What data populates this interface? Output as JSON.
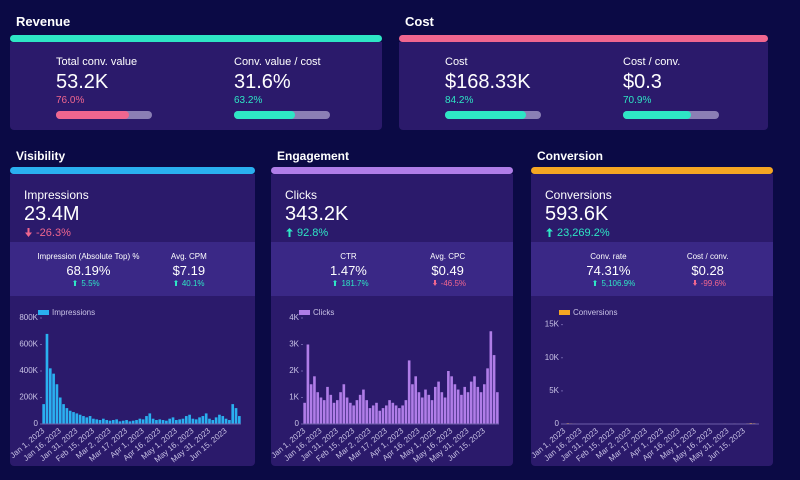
{
  "sections": [
    {
      "title": "Revenue",
      "color": "#2ee6c5",
      "kpis": [
        {
          "label": "Total conv. value",
          "value": "53.2K",
          "progress": {
            "value": 76.0,
            "label": "76.0%"
          },
          "color": "#f0668f"
        },
        {
          "label": "Conv. value / cost",
          "value": "31.6%",
          "progress": {
            "value": 63.2,
            "label": "63.2%"
          },
          "color": "#2ee6c5"
        }
      ]
    },
    {
      "title": "Cost",
      "color": "#f0668f",
      "kpis": [
        {
          "label": "Cost",
          "value": "$168.33K",
          "progress": {
            "value": 84.2,
            "label": "84.2%"
          },
          "color": "#2ee6c5"
        },
        {
          "label": "Cost / conv.",
          "value": "$0.3",
          "progress": {
            "value": 70.9,
            "label": "70.9%"
          },
          "color": "#2ee6c5"
        }
      ]
    }
  ],
  "panels": [
    {
      "title": "Visibility",
      "color": "#2ab0f0",
      "main": {
        "label": "Impressions",
        "value": "23.4M",
        "change": "-26.3%",
        "trend": "down"
      },
      "subs": [
        {
          "label": "Impression (Absolute Top) %",
          "value": "68.19%",
          "change": "5.5%",
          "trend": "up"
        },
        {
          "label": "Avg. CPM",
          "value": "$7.19",
          "change": "40.1%",
          "trend": "up"
        }
      ]
    },
    {
      "title": "Engagement",
      "color": "#b07de8",
      "main": {
        "label": "Clicks",
        "value": "343.2K",
        "change": "92.8%",
        "trend": "up"
      },
      "subs": [
        {
          "label": "CTR",
          "value": "1.47%",
          "change": "181.7%",
          "trend": "up"
        },
        {
          "label": "Avg. CPC",
          "value": "$0.49",
          "change": "-46.5%",
          "trend": "down"
        }
      ]
    },
    {
      "title": "Conversion",
      "color": "#f5a623",
      "main": {
        "label": "Conversions",
        "value": "593.6K",
        "change": "23,269.2%",
        "trend": "up"
      },
      "subs": [
        {
          "label": "Conv. rate",
          "value": "74.31%",
          "change": "5,106.9%",
          "trend": "up"
        },
        {
          "label": "Cost / conv.",
          "value": "$0.28",
          "change": "-99.6%",
          "trend": "down"
        }
      ]
    }
  ],
  "chart_data": [
    {
      "type": "bar",
      "categories": [
        "Jan 1, 2023",
        null,
        null,
        null,
        null,
        "Jan 16, 2023",
        null,
        null,
        null,
        null,
        "Jan 31, 2023",
        null,
        null,
        null,
        null,
        "Feb 15, 2023",
        null,
        null,
        null,
        null,
        "Mar 2, 2023",
        null,
        null,
        null,
        null,
        "Mar 17, 2023",
        null,
        null,
        null,
        null,
        "Apr 1, 2023",
        null,
        null,
        null,
        null,
        "Apr 16, 2023",
        null,
        null,
        null,
        null,
        "May 1, 2023",
        null,
        null,
        null,
        null,
        "May 16, 2023",
        null,
        null,
        null,
        null,
        "May 31, 2023",
        null,
        null,
        null,
        null,
        "Jun 15, 2023",
        null,
        null,
        null,
        null
      ],
      "series": [
        {
          "name": "Impressions",
          "color": "#2ab0f0",
          "values": [
            150000,
            680000,
            420000,
            380000,
            300000,
            200000,
            150000,
            120000,
            100000,
            90000,
            80000,
            70000,
            60000,
            50000,
            60000,
            40000,
            35000,
            30000,
            40000,
            30000,
            25000,
            30000,
            35000,
            20000,
            25000,
            30000,
            20000,
            25000,
            30000,
            40000,
            35000,
            60000,
            80000,
            40000,
            30000,
            35000,
            30000,
            25000,
            40000,
            50000,
            30000,
            35000,
            40000,
            60000,
            70000,
            40000,
            35000,
            50000,
            60000,
            80000,
            40000,
            30000,
            50000,
            70000,
            60000,
            40000,
            30000,
            150000,
            120000,
            60000
          ]
        }
      ],
      "ylim": [
        0,
        800000
      ],
      "yticks": [
        0,
        {
          "value": 200000,
          "label": "200K"
        },
        {
          "value": 400000,
          "label": "400K"
        },
        {
          "value": 600000,
          "label": "600K"
        },
        {
          "value": 800000,
          "label": "800K"
        }
      ]
    },
    {
      "type": "bar",
      "categories": [
        "Jan 1, 2023",
        null,
        null,
        null,
        null,
        "Jan 16, 2023",
        null,
        null,
        null,
        null,
        "Jan 31, 2023",
        null,
        null,
        null,
        null,
        "Feb 15, 2023",
        null,
        null,
        null,
        null,
        "Mar 2, 2023",
        null,
        null,
        null,
        null,
        "Mar 17, 2023",
        null,
        null,
        null,
        null,
        "Apr 1, 2023",
        null,
        null,
        null,
        null,
        "Apr 16, 2023",
        null,
        null,
        null,
        null,
        "May 1, 2023",
        null,
        null,
        null,
        null,
        "May 16, 2023",
        null,
        null,
        null,
        null,
        "May 31, 2023",
        null,
        null,
        null,
        null,
        "Jun 15, 2023",
        null,
        null,
        null,
        null
      ],
      "series": [
        {
          "name": "Clicks",
          "color": "#b07de8",
          "values": [
            800,
            3000,
            1500,
            1800,
            1200,
            1000,
            900,
            1400,
            1100,
            800,
            900,
            1200,
            1500,
            1000,
            800,
            700,
            900,
            1100,
            1300,
            900,
            600,
            700,
            800,
            500,
            600,
            700,
            900,
            800,
            700,
            600,
            700,
            900,
            2400,
            1500,
            1800,
            1200,
            1000,
            1300,
            1100,
            900,
            1400,
            1600,
            1200,
            1000,
            2000,
            1800,
            1500,
            1300,
            1100,
            1400,
            1200,
            1600,
            1800,
            1400,
            1200,
            1500,
            2100,
            3500,
            2600,
            1200
          ]
        }
      ],
      "ylim": [
        0,
        4000
      ],
      "yticks": [
        0,
        {
          "value": 1000,
          "label": "1K"
        },
        {
          "value": 2000,
          "label": "2K"
        },
        {
          "value": 3000,
          "label": "3K"
        },
        {
          "value": 4000,
          "label": "4K"
        }
      ]
    },
    {
      "type": "bar",
      "categories": [
        "Jan 1, 2023",
        null,
        null,
        null,
        null,
        "Jan 16, 2023",
        null,
        null,
        null,
        null,
        "Jan 31, 2023",
        null,
        null,
        null,
        null,
        "Feb 15, 2023",
        null,
        null,
        null,
        null,
        "Mar 2, 2023",
        null,
        null,
        null,
        null,
        "Mar 17, 2023",
        null,
        null,
        null,
        null,
        "Apr 1, 2023",
        null,
        null,
        null,
        null,
        "Apr 16, 2023",
        null,
        null,
        null,
        null,
        "May 1, 2023",
        null,
        null,
        null,
        null,
        "May 16, 2023",
        null,
        null,
        null,
        null,
        "May 31, 2023",
        null,
        null,
        null,
        null,
        "Jun 15, 2023",
        null,
        null,
        null,
        null
      ],
      "series": [
        {
          "name": "Conversions",
          "color": "#f5a623",
          "values": [
            60,
            120,
            90,
            80,
            70,
            60,
            50,
            60,
            70,
            50,
            40,
            50,
            60,
            40,
            50,
            40,
            30,
            40,
            50,
            40,
            30,
            40,
            50,
            30,
            40,
            50,
            40,
            30,
            40,
            50,
            40,
            60,
            80,
            60,
            50,
            60,
            50,
            40,
            50,
            60,
            50,
            60,
            70,
            60,
            80,
            70,
            60,
            70,
            60,
            80,
            60,
            70,
            80,
            70,
            60,
            70,
            90,
            140,
            110,
            70
          ]
        }
      ],
      "ylim": [
        0,
        16000
      ],
      "yticks": [
        0,
        {
          "value": 5000,
          "label": "5K"
        },
        {
          "value": 10000,
          "label": "10K"
        },
        {
          "value": 15000,
          "label": "15K"
        }
      ]
    }
  ]
}
